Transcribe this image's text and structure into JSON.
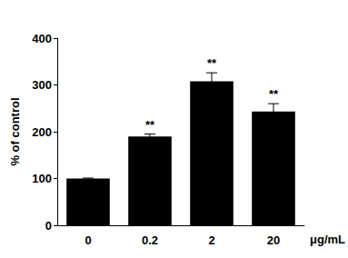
{
  "chart_data": {
    "type": "bar",
    "y_label": "% of control",
    "x_label": "μg/mL",
    "categories": [
      "0",
      "0.2",
      "2",
      "20"
    ],
    "values": [
      100,
      190,
      308,
      243
    ],
    "errors": [
      1,
      5,
      18,
      17
    ],
    "annotations": [
      null,
      "**",
      "**",
      "**"
    ],
    "color": "#000000",
    "ylim": [
      0,
      400
    ],
    "yticks": [
      0,
      100,
      200,
      300,
      400
    ],
    "grid": false
  }
}
